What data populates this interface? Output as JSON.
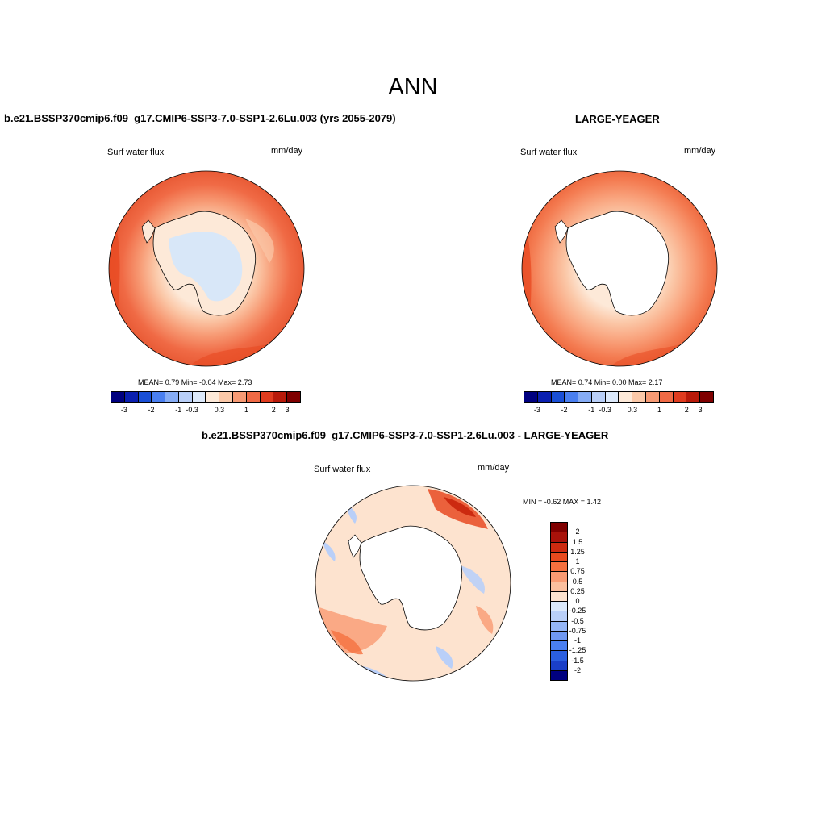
{
  "figure": {
    "title": "ANN"
  },
  "panels": [
    {
      "title": "b.e21.BSSP370cmip6.f09_g17.CMIP6-SSP3-7.0-SSP1-2.6Lu.003 (yrs 2055-2079)",
      "variable": "Surf water flux",
      "units": "mm/day",
      "stats": "MEAN=   0.79  Min=   -0.04  Max=   2.73",
      "colorbar_labels": [
        "-3",
        "-2",
        "-1",
        "-0.3",
        "0.3",
        "1",
        "2",
        "3"
      ]
    },
    {
      "title": "LARGE-YEAGER",
      "variable": "Surf water flux",
      "units": "mm/day",
      "stats": "MEAN=   0.74  Min=   0.00  Max=   2.17",
      "colorbar_labels": [
        "-3",
        "-2",
        "-1",
        "-0.3",
        "0.3",
        "1",
        "2",
        "3"
      ]
    },
    {
      "title": "b.e21.BSSP370cmip6.f09_g17.CMIP6-SSP3-7.0-SSP1-2.6Lu.003 - LARGE-YEAGER",
      "variable": "Surf water flux",
      "units": "mm/day",
      "stats": "MIN =  -0.62 MAX =   1.42",
      "colorbar_labels": [
        "2",
        "1.5",
        "1.25",
        "1",
        "0.75",
        "0.5",
        "0.25",
        "0",
        "-0.25",
        "-0.5",
        "-0.75",
        "-1",
        "-1.25",
        "-1.5",
        "-2"
      ]
    }
  ],
  "colors": {
    "abs_scale": [
      "#00007f",
      "#0a1fb0",
      "#1a4fd6",
      "#4a7ff0",
      "#86acf5",
      "#b9cff8",
      "#dce9fb",
      "#fde9d8",
      "#fbc8a8",
      "#f79a74",
      "#f06a45",
      "#e03c1f",
      "#b81a0a",
      "#7f0000"
    ],
    "diff_scale": [
      "#7f0000",
      "#a8120a",
      "#cc2a10",
      "#e84a1e",
      "#f5703e",
      "#f99a72",
      "#fbbf9e",
      "#fde3cf",
      "#dce9fb",
      "#b9cff8",
      "#95b6f6",
      "#6f98f2",
      "#4a7ff0",
      "#2a5fe0",
      "#1a3fc8",
      "#00007f"
    ],
    "land": "#ffffff",
    "coast": "#000000"
  }
}
